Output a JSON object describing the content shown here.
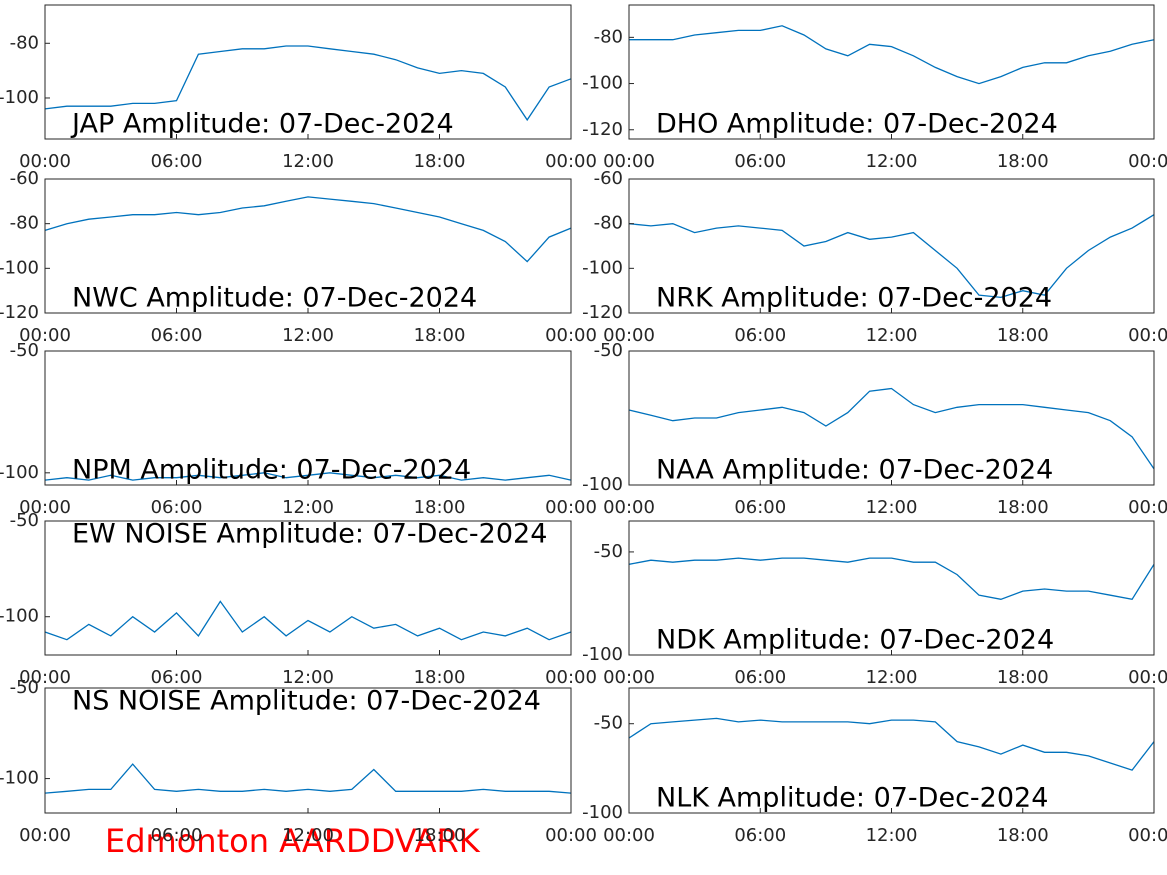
{
  "chart_data": [
    {
      "type": "line",
      "title": "JAP Amplitude: 07-Dec-2024",
      "color": "#0072bd",
      "x": [
        0,
        1,
        2,
        3,
        4,
        5,
        6,
        7,
        8,
        9,
        10,
        11,
        12,
        13,
        14,
        15,
        16,
        17,
        18,
        19,
        20,
        21,
        22,
        23,
        24
      ],
      "values": [
        -104,
        -103,
        -103,
        -103,
        -102,
        -102,
        -101,
        -84,
        -83,
        -82,
        -82,
        -81,
        -81,
        -82,
        -83,
        -84,
        -86,
        -89,
        -91,
        -90,
        -91,
        -96,
        -108,
        -96,
        -93
      ],
      "ylim": [
        -115,
        -66
      ],
      "yticks": [
        -80,
        -100
      ],
      "xlim": [
        0,
        24
      ],
      "xticks": [
        {
          "value": 0,
          "label": "00:00"
        },
        {
          "value": 6,
          "label": "06:00"
        },
        {
          "value": 12,
          "label": "12:00"
        },
        {
          "value": 18,
          "label": "18:00"
        },
        {
          "value": 24,
          "label": "00:00"
        }
      ]
    },
    {
      "type": "line",
      "title": "DHO Amplitude: 07-Dec-2024",
      "color": "#0072bd",
      "x": [
        0,
        1,
        2,
        3,
        4,
        5,
        6,
        7,
        8,
        9,
        10,
        11,
        12,
        13,
        14,
        15,
        16,
        17,
        18,
        19,
        20,
        21,
        22,
        23,
        24
      ],
      "values": [
        -81,
        -81,
        -81,
        -79,
        -78,
        -77,
        -77,
        -75,
        -79,
        -85,
        -88,
        -83,
        -84,
        -88,
        -93,
        -97,
        -100,
        -97,
        -93,
        -91,
        -91,
        -88,
        -86,
        -83,
        -81
      ],
      "ylim": [
        -124,
        -66
      ],
      "yticks": [
        -80,
        -100,
        -120
      ],
      "xlim": [
        0,
        24
      ],
      "xticks": [
        {
          "value": 0,
          "label": "00:00"
        },
        {
          "value": 6,
          "label": "06:00"
        },
        {
          "value": 12,
          "label": "12:00"
        },
        {
          "value": 18,
          "label": "18:00"
        },
        {
          "value": 24,
          "label": "00:00"
        }
      ]
    },
    {
      "type": "line",
      "title": "NWC Amplitude: 07-Dec-2024",
      "color": "#0072bd",
      "x": [
        0,
        1,
        2,
        3,
        4,
        5,
        6,
        7,
        8,
        9,
        10,
        11,
        12,
        13,
        14,
        15,
        16,
        17,
        18,
        19,
        20,
        21,
        22,
        23,
        24
      ],
      "values": [
        -83,
        -80,
        -78,
        -77,
        -76,
        -76,
        -75,
        -76,
        -75,
        -73,
        -72,
        -70,
        -68,
        -69,
        -70,
        -71,
        -73,
        -75,
        -77,
        -80,
        -83,
        -88,
        -97,
        -86,
        -82
      ],
      "ylim": [
        -120,
        -60
      ],
      "yticks": [
        -60,
        -80,
        -100,
        -120
      ],
      "xlim": [
        0,
        24
      ],
      "xticks": [
        {
          "value": 0,
          "label": "00:00"
        },
        {
          "value": 6,
          "label": "06:00"
        },
        {
          "value": 12,
          "label": "12:00"
        },
        {
          "value": 18,
          "label": "18:00"
        },
        {
          "value": 24,
          "label": "00:00"
        }
      ]
    },
    {
      "type": "line",
      "title": "NRK Amplitude: 07-Dec-2024",
      "color": "#0072bd",
      "x": [
        0,
        1,
        2,
        3,
        4,
        5,
        6,
        7,
        8,
        9,
        10,
        11,
        12,
        13,
        14,
        15,
        16,
        17,
        18,
        19,
        20,
        21,
        22,
        23,
        24
      ],
      "values": [
        -80,
        -81,
        -80,
        -84,
        -82,
        -81,
        -82,
        -83,
        -90,
        -88,
        -84,
        -87,
        -86,
        -84,
        -92,
        -100,
        -112,
        -113,
        -110,
        -112,
        -100,
        -92,
        -86,
        -82,
        -76
      ],
      "ylim": [
        -120,
        -60
      ],
      "yticks": [
        -60,
        -80,
        -100,
        -120
      ],
      "xlim": [
        0,
        24
      ],
      "xticks": [
        {
          "value": 0,
          "label": "00:00"
        },
        {
          "value": 6,
          "label": "06:00"
        },
        {
          "value": 12,
          "label": "12:00"
        },
        {
          "value": 18,
          "label": "18:00"
        },
        {
          "value": 24,
          "label": "00:00"
        }
      ]
    },
    {
      "type": "line",
      "title": "NPM Amplitude: 07-Dec-2024",
      "color": "#0072bd",
      "x": [
        0,
        1,
        2,
        3,
        4,
        5,
        6,
        7,
        8,
        9,
        10,
        11,
        12,
        13,
        14,
        15,
        16,
        17,
        18,
        19,
        20,
        21,
        22,
        23,
        24
      ],
      "values": [
        -103,
        -102,
        -103,
        -101,
        -103,
        -102,
        -102,
        -101,
        -102,
        -101,
        -100,
        -102,
        -101,
        -100,
        -101,
        -102,
        -101,
        -102,
        -101,
        -103,
        -102,
        -103,
        -102,
        -101,
        -103
      ],
      "ylim": [
        -105,
        -50
      ],
      "yticks": [
        -50,
        -100
      ],
      "xlim": [
        0,
        24
      ],
      "xticks": [
        {
          "value": 0,
          "label": "00:00"
        },
        {
          "value": 6,
          "label": "06:00"
        },
        {
          "value": 12,
          "label": "12:00"
        },
        {
          "value": 18,
          "label": "18:00"
        },
        {
          "value": 24,
          "label": "00:00"
        }
      ]
    },
    {
      "type": "line",
      "title": "NAA Amplitude: 07-Dec-2024",
      "color": "#0072bd",
      "x": [
        0,
        1,
        2,
        3,
        4,
        5,
        6,
        7,
        8,
        9,
        10,
        11,
        12,
        13,
        14,
        15,
        16,
        17,
        18,
        19,
        20,
        21,
        22,
        23,
        24
      ],
      "values": [
        -72,
        -74,
        -76,
        -75,
        -75,
        -73,
        -72,
        -71,
        -73,
        -78,
        -73,
        -65,
        -64,
        -70,
        -73,
        -71,
        -70,
        -70,
        -70,
        -71,
        -72,
        -73,
        -76,
        -82,
        -94
      ],
      "ylim": [
        -100,
        -50
      ],
      "yticks": [
        -50,
        -100
      ],
      "xlim": [
        0,
        24
      ],
      "xticks": [
        {
          "value": 0,
          "label": "00:00"
        },
        {
          "value": 6,
          "label": "06:00"
        },
        {
          "value": 12,
          "label": "12:00"
        },
        {
          "value": 18,
          "label": "18:00"
        },
        {
          "value": 24,
          "label": "00:00"
        }
      ]
    },
    {
      "type": "line",
      "title": "EW NOISE Amplitude: 07-Dec-2024",
      "color": "#0072bd",
      "x": [
        0,
        1,
        2,
        3,
        4,
        5,
        6,
        7,
        8,
        9,
        10,
        11,
        12,
        13,
        14,
        15,
        16,
        17,
        18,
        19,
        20,
        21,
        22,
        23,
        24
      ],
      "values": [
        -108,
        -112,
        -104,
        -110,
        -100,
        -108,
        -98,
        -110,
        -92,
        -108,
        -100,
        -110,
        -102,
        -108,
        -100,
        -106,
        -104,
        -110,
        -106,
        -112,
        -108,
        -110,
        -106,
        -112,
        -108
      ],
      "ylim": [
        -120,
        -50
      ],
      "yticks": [
        -50,
        -100
      ],
      "xlim": [
        0,
        24
      ],
      "xticks": [
        {
          "value": 0,
          "label": "00:00"
        },
        {
          "value": 6,
          "label": "06:00"
        },
        {
          "value": 12,
          "label": "12:00"
        },
        {
          "value": 18,
          "label": "18:00"
        },
        {
          "value": 24,
          "label": "00:00"
        }
      ]
    },
    {
      "type": "line",
      "title": "NDK Amplitude: 07-Dec-2024",
      "color": "#0072bd",
      "x": [
        0,
        1,
        2,
        3,
        4,
        5,
        6,
        7,
        8,
        9,
        10,
        11,
        12,
        13,
        14,
        15,
        16,
        17,
        18,
        19,
        20,
        21,
        22,
        23,
        24
      ],
      "values": [
        -56,
        -54,
        -55,
        -54,
        -54,
        -53,
        -54,
        -53,
        -53,
        -54,
        -55,
        -53,
        -53,
        -55,
        -55,
        -61,
        -71,
        -73,
        -69,
        -68,
        -69,
        -69,
        -71,
        -73,
        -56
      ],
      "ylim": [
        -100,
        -35
      ],
      "yticks": [
        -50,
        -100
      ],
      "xlim": [
        0,
        24
      ],
      "xticks": [
        {
          "value": 0,
          "label": "00:00"
        },
        {
          "value": 6,
          "label": "06:00"
        },
        {
          "value": 12,
          "label": "12:00"
        },
        {
          "value": 18,
          "label": "18:00"
        },
        {
          "value": 24,
          "label": "00:00"
        }
      ]
    },
    {
      "type": "line",
      "title": "NS NOISE Amplitude: 07-Dec-2024",
      "color": "#0072bd",
      "x": [
        0,
        1,
        2,
        3,
        4,
        5,
        6,
        7,
        8,
        9,
        10,
        11,
        12,
        13,
        14,
        15,
        16,
        17,
        18,
        19,
        20,
        21,
        22,
        23,
        24
      ],
      "values": [
        -108,
        -107,
        -106,
        -106,
        -92,
        -106,
        -107,
        -106,
        -107,
        -107,
        -106,
        -107,
        -106,
        -107,
        -106,
        -95,
        -107,
        -107,
        -107,
        -107,
        -106,
        -107,
        -107,
        -107,
        -108
      ],
      "ylim": [
        -119,
        -50
      ],
      "yticks": [
        -50,
        -100
      ],
      "xlim": [
        0,
        24
      ],
      "xticks": [
        {
          "value": 0,
          "label": "00:00"
        },
        {
          "value": 6,
          "label": "06:00"
        },
        {
          "value": 12,
          "label": "12:00"
        },
        {
          "value": 18,
          "label": "18:00"
        },
        {
          "value": 24,
          "label": "00:00"
        }
      ]
    },
    {
      "type": "line",
      "title": "NLK Amplitude: 07-Dec-2024",
      "color": "#0072bd",
      "x": [
        0,
        1,
        2,
        3,
        4,
        5,
        6,
        7,
        8,
        9,
        10,
        11,
        12,
        13,
        14,
        15,
        16,
        17,
        18,
        19,
        20,
        21,
        22,
        23,
        24
      ],
      "values": [
        -58,
        -50,
        -49,
        -48,
        -47,
        -49,
        -48,
        -49,
        -49,
        -49,
        -49,
        -50,
        -48,
        -48,
        -49,
        -60,
        -63,
        -67,
        -62,
        -66,
        -66,
        -68,
        -72,
        -76,
        -60
      ],
      "ylim": [
        -100,
        -30
      ],
      "yticks": [
        -50,
        -100
      ],
      "xlim": [
        0,
        24
      ],
      "xticks": [
        {
          "value": 0,
          "label": "00:00"
        },
        {
          "value": 6,
          "label": "06:00"
        },
        {
          "value": 12,
          "label": "12:00"
        },
        {
          "value": 18,
          "label": "18:00"
        },
        {
          "value": 24,
          "label": "00:00"
        }
      ]
    }
  ],
  "footer": "Edmonton AARDDVARK"
}
